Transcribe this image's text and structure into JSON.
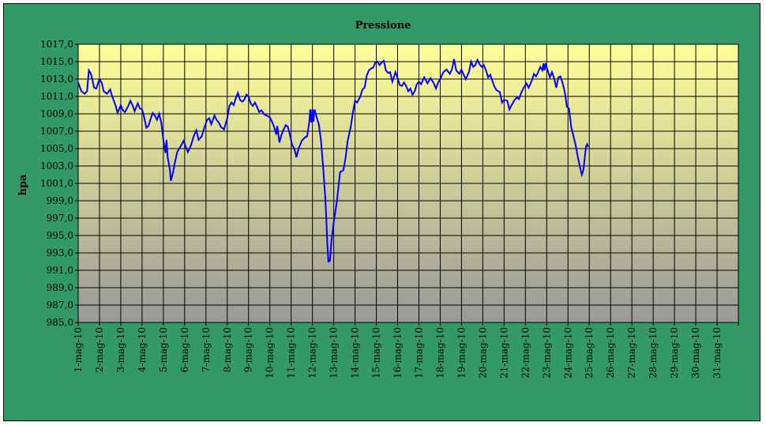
{
  "chart_data": {
    "type": "line",
    "title": "Pressione",
    "ylabel": "hpa",
    "xlabel": "",
    "ylim": [
      985,
      1017
    ],
    "yticks": [
      "985,0",
      "987,0",
      "989,0",
      "991,0",
      "993,0",
      "995,0",
      "997,0",
      "999,0",
      "1001,0",
      "1003,0",
      "1005,0",
      "1007,0",
      "1009,0",
      "1011,0",
      "1013,0",
      "1015,0",
      "1017,0"
    ],
    "categories": [
      "1-mag-10",
      "2-mag-10",
      "3-mag-10",
      "4-mag-10",
      "5-mag-10",
      "6-mag-10",
      "7-mag-10",
      "8-mag-10",
      "9-mag-10",
      "10-mag-10",
      "11-mag-10",
      "12-mag-10",
      "13-mag-10",
      "14-mag-10",
      "15-mag-10",
      "16-mag-10",
      "17-mag-10",
      "18-mag-10",
      "19-mag-10",
      "20-mag-10",
      "21-mag-10",
      "22-mag-10",
      "23-mag-10",
      "24-mag-10",
      "25-mag-10",
      "26-mag-10",
      "27-mag-10",
      "28-mag-10",
      "29-mag-10",
      "30-mag-10",
      "31-mag-10"
    ],
    "grid": true,
    "line_color": "#0000ff",
    "plot_gradient": [
      "#ffff99",
      "#999999"
    ],
    "background_color": "#339966",
    "series": [
      {
        "values": [
          [
            0.0,
            1012.6
          ],
          [
            0.15,
            1011.6
          ],
          [
            0.3,
            1011.3
          ],
          [
            0.42,
            1011.6
          ],
          [
            0.5,
            1014.0
          ],
          [
            0.6,
            1013.6
          ],
          [
            0.75,
            1012.0
          ],
          [
            0.85,
            1011.9
          ],
          [
            1.0,
            1013.0
          ],
          [
            1.1,
            1012.6
          ],
          [
            1.2,
            1011.6
          ],
          [
            1.35,
            1011.3
          ],
          [
            1.5,
            1011.8
          ],
          [
            1.6,
            1011.0
          ],
          [
            1.75,
            1010.0
          ],
          [
            1.85,
            1009.1
          ],
          [
            2.0,
            1010.0
          ],
          [
            2.1,
            1009.4
          ],
          [
            2.2,
            1009.2
          ],
          [
            2.35,
            1009.9
          ],
          [
            2.45,
            1010.5
          ],
          [
            2.55,
            1010.0
          ],
          [
            2.65,
            1009.3
          ],
          [
            2.8,
            1010.2
          ],
          [
            2.9,
            1009.6
          ],
          [
            3.0,
            1009.5
          ],
          [
            3.1,
            1008.6
          ],
          [
            3.2,
            1007.4
          ],
          [
            3.3,
            1007.6
          ],
          [
            3.4,
            1008.4
          ],
          [
            3.5,
            1009.1
          ],
          [
            3.6,
            1008.8
          ],
          [
            3.7,
            1008.3
          ],
          [
            3.8,
            1009.0
          ],
          [
            3.9,
            1008.0
          ],
          [
            4.0,
            1006.0
          ],
          [
            4.1,
            1004.5
          ],
          [
            4.15,
            1006.0
          ],
          [
            4.2,
            1004.0
          ],
          [
            4.3,
            1002.7
          ],
          [
            4.35,
            1001.3
          ],
          [
            4.45,
            1002.2
          ],
          [
            4.55,
            1003.5
          ],
          [
            4.65,
            1004.6
          ],
          [
            4.8,
            1005.2
          ],
          [
            4.95,
            1005.9
          ],
          [
            5.05,
            1005.2
          ],
          [
            5.15,
            1004.6
          ],
          [
            5.3,
            1005.4
          ],
          [
            5.45,
            1006.6
          ],
          [
            5.55,
            1007.1
          ],
          [
            5.65,
            1006.0
          ],
          [
            5.8,
            1006.4
          ],
          [
            5.95,
            1007.6
          ],
          [
            6.05,
            1008.3
          ],
          [
            6.15,
            1008.5
          ],
          [
            6.25,
            1007.8
          ],
          [
            6.4,
            1008.8
          ],
          [
            6.5,
            1008.3
          ],
          [
            6.6,
            1008.0
          ],
          [
            6.7,
            1007.5
          ],
          [
            6.85,
            1007.2
          ],
          [
            7.0,
            1008.5
          ],
          [
            7.1,
            1009.9
          ],
          [
            7.2,
            1010.3
          ],
          [
            7.3,
            1010.0
          ],
          [
            7.4,
            1010.8
          ],
          [
            7.5,
            1011.4
          ],
          [
            7.6,
            1010.6
          ],
          [
            7.7,
            1010.4
          ],
          [
            7.8,
            1010.6
          ],
          [
            7.9,
            1011.2
          ],
          [
            8.0,
            1011.0
          ],
          [
            8.1,
            1010.2
          ],
          [
            8.2,
            1009.9
          ],
          [
            8.3,
            1010.3
          ],
          [
            8.4,
            1009.8
          ],
          [
            8.5,
            1009.2
          ],
          [
            8.6,
            1009.4
          ],
          [
            8.75,
            1008.9
          ],
          [
            8.85,
            1008.8
          ],
          [
            9.0,
            1008.6
          ],
          [
            9.1,
            1008.1
          ],
          [
            9.2,
            1007.5
          ],
          [
            9.3,
            1006.6
          ],
          [
            9.35,
            1007.6
          ],
          [
            9.45,
            1005.7
          ],
          [
            9.55,
            1006.6
          ],
          [
            9.65,
            1007.2
          ],
          [
            9.75,
            1007.7
          ],
          [
            9.85,
            1007.5
          ],
          [
            9.95,
            1006.5
          ],
          [
            10.05,
            1005.4
          ],
          [
            10.15,
            1005.0
          ],
          [
            10.25,
            1004.0
          ],
          [
            10.35,
            1005.0
          ],
          [
            10.5,
            1005.9
          ],
          [
            10.65,
            1006.3
          ],
          [
            10.75,
            1006.4
          ],
          [
            10.85,
            1008.0
          ],
          [
            10.9,
            1009.5
          ],
          [
            10.95,
            1008.0
          ],
          [
            11.0,
            1009.5
          ],
          [
            11.05,
            1008.1
          ],
          [
            11.1,
            1009.5
          ],
          [
            11.2,
            1008.6
          ],
          [
            11.3,
            1007.8
          ],
          [
            11.4,
            1006.0
          ],
          [
            11.5,
            1003.0
          ],
          [
            11.6,
            999.5
          ],
          [
            11.65,
            997.0
          ],
          [
            11.7,
            994.0
          ],
          [
            11.75,
            992.0
          ],
          [
            11.82,
            992.1
          ],
          [
            11.9,
            994.5
          ],
          [
            12.0,
            996.5
          ],
          [
            12.15,
            999.0
          ],
          [
            12.3,
            1002.3
          ],
          [
            12.45,
            1002.5
          ],
          [
            12.55,
            1003.8
          ],
          [
            12.65,
            1005.8
          ],
          [
            12.8,
            1007.5
          ],
          [
            12.9,
            1009.2
          ],
          [
            13.0,
            1010.5
          ],
          [
            13.1,
            1010.3
          ],
          [
            13.25,
            1011.0
          ],
          [
            13.35,
            1011.8
          ],
          [
            13.45,
            1012.0
          ],
          [
            13.55,
            1013.4
          ],
          [
            13.65,
            1014.0
          ],
          [
            13.75,
            1014.2
          ],
          [
            13.85,
            1014.3
          ],
          [
            13.95,
            1014.9
          ],
          [
            14.05,
            1015.0
          ],
          [
            14.15,
            1014.6
          ],
          [
            14.25,
            1014.9
          ],
          [
            14.35,
            1015.1
          ],
          [
            14.45,
            1014.0
          ],
          [
            14.55,
            1013.7
          ],
          [
            14.65,
            1013.8
          ],
          [
            14.75,
            1012.7
          ],
          [
            14.9,
            1013.8
          ],
          [
            15.0,
            1013.1
          ],
          [
            15.1,
            1012.3
          ],
          [
            15.2,
            1012.2
          ],
          [
            15.3,
            1012.6
          ],
          [
            15.4,
            1012.2
          ],
          [
            15.5,
            1011.6
          ],
          [
            15.6,
            1011.9
          ],
          [
            15.7,
            1011.2
          ],
          [
            15.8,
            1011.6
          ],
          [
            15.9,
            1012.4
          ],
          [
            16.0,
            1012.7
          ],
          [
            16.1,
            1012.4
          ],
          [
            16.25,
            1013.2
          ],
          [
            16.4,
            1012.5
          ],
          [
            16.55,
            1013.1
          ],
          [
            16.7,
            1012.5
          ],
          [
            16.8,
            1011.9
          ],
          [
            16.9,
            1012.6
          ],
          [
            17.0,
            1013.0
          ],
          [
            17.15,
            1013.8
          ],
          [
            17.3,
            1014.1
          ],
          [
            17.45,
            1013.6
          ],
          [
            17.55,
            1014.1
          ],
          [
            17.65,
            1015.3
          ],
          [
            17.75,
            1014.0
          ],
          [
            17.9,
            1013.6
          ],
          [
            18.0,
            1014.1
          ],
          [
            18.1,
            1013.5
          ],
          [
            18.2,
            1013.0
          ],
          [
            18.35,
            1013.8
          ],
          [
            18.45,
            1015.0
          ],
          [
            18.55,
            1014.4
          ],
          [
            18.65,
            1014.6
          ],
          [
            18.75,
            1015.2
          ],
          [
            18.85,
            1014.7
          ],
          [
            18.95,
            1014.4
          ],
          [
            19.05,
            1014.6
          ],
          [
            19.15,
            1014.0
          ],
          [
            19.25,
            1013.2
          ],
          [
            19.35,
            1013.5
          ],
          [
            19.45,
            1012.8
          ],
          [
            19.55,
            1012.1
          ],
          [
            19.65,
            1011.7
          ],
          [
            19.8,
            1011.5
          ],
          [
            19.9,
            1010.3
          ],
          [
            20.0,
            1010.6
          ],
          [
            20.15,
            1010.5
          ],
          [
            20.25,
            1009.5
          ],
          [
            20.35,
            1010.0
          ],
          [
            20.5,
            1010.6
          ],
          [
            20.6,
            1010.9
          ],
          [
            20.7,
            1010.7
          ],
          [
            20.8,
            1011.4
          ],
          [
            20.9,
            1011.9
          ],
          [
            21.05,
            1012.5
          ],
          [
            21.15,
            1012.0
          ],
          [
            21.3,
            1012.8
          ],
          [
            21.4,
            1013.6
          ],
          [
            21.5,
            1013.3
          ],
          [
            21.6,
            1013.8
          ],
          [
            21.7,
            1014.4
          ],
          [
            21.8,
            1014.0
          ],
          [
            21.85,
            1014.8
          ],
          [
            21.9,
            1014.0
          ],
          [
            21.95,
            1014.8
          ],
          [
            22.05,
            1014.0
          ],
          [
            22.15,
            1013.2
          ],
          [
            22.25,
            1013.8
          ],
          [
            22.35,
            1013.1
          ],
          [
            22.45,
            1012.0
          ],
          [
            22.55,
            1013.2
          ],
          [
            22.65,
            1013.3
          ],
          [
            22.75,
            1012.5
          ],
          [
            22.85,
            1011.5
          ],
          [
            22.95,
            1009.8
          ],
          [
            23.05,
            1009.6
          ],
          [
            23.15,
            1007.5
          ],
          [
            23.25,
            1006.5
          ],
          [
            23.35,
            1005.5
          ],
          [
            23.45,
            1004.2
          ],
          [
            23.55,
            1003.0
          ],
          [
            23.65,
            1002.0
          ],
          [
            23.72,
            1002.5
          ],
          [
            23.78,
            1003.8
          ],
          [
            23.85,
            1005.3
          ],
          [
            23.9,
            1005.5
          ],
          [
            23.95,
            1005.2
          ]
        ]
      }
    ]
  }
}
